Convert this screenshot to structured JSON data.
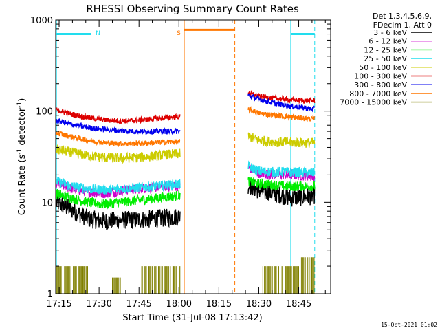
{
  "chart_data": {
    "type": "line",
    "title": "RHESSI Observing Summary Count Rates",
    "xlabel": "Start Time (31-Jul-08 17:13:42)",
    "ylabel_main": "Count Rate (s",
    "ylabel_sup1": "-1",
    "ylabel_mid": " detector",
    "ylabel_sup2": "-1",
    "ylabel_end": ")",
    "x_range_min": [
      1033.7,
      1137
    ],
    "ylim": [
      1,
      1000
    ],
    "yscale": "log",
    "x_ticks": [
      {
        "label": "17:15",
        "min": 1035
      },
      {
        "label": "17:30",
        "min": 1050
      },
      {
        "label": "17:45",
        "min": 1065
      },
      {
        "label": "18:00",
        "min": 1080
      },
      {
        "label": "18:15",
        "min": 1095
      },
      {
        "label": "18:30",
        "min": 1110
      },
      {
        "label": "18:45",
        "min": 1125
      }
    ],
    "y_ticks": [
      {
        "label": "1",
        "value": 1
      },
      {
        "label": "10",
        "value": 10
      },
      {
        "label": "100",
        "value": 100
      },
      {
        "label": "1000",
        "value": 1000
      }
    ],
    "legend_header": [
      "Det 1,3,4,5,6,9,",
      "FDecim 1, Att 0"
    ],
    "legend_position": "right",
    "series": [
      {
        "name": "3 - 6 keV",
        "color": "#000000",
        "segments": [
          {
            "t": [
              1034,
              1040,
              1046,
              1052,
              1058,
              1064,
              1070,
              1076,
              1080.5
            ],
            "v": [
              10,
              8.2,
              6.6,
              6.2,
              6.4,
              6.4,
              6.6,
              6.8,
              7.0
            ]
          },
          {
            "t": [
              1106,
              1110,
              1116,
              1122,
              1128,
              1131
            ],
            "v": [
              15.5,
              13.5,
              12.5,
              11.2,
              11.5,
              12
            ]
          }
        ]
      },
      {
        "name": "6 - 12 keV",
        "color": "#cc00cc",
        "segments": [
          {
            "t": [
              1034,
              1040,
              1046,
              1052,
              1058,
              1064,
              1070,
              1076,
              1080.5
            ],
            "v": [
              16,
              14,
              13,
              12.5,
              13.5,
              14,
              14.5,
              15,
              15
            ]
          },
          {
            "t": [
              1106,
              1110,
              1116,
              1122,
              1128,
              1131
            ],
            "v": [
              24,
              21,
              20,
              20,
              19.5,
              19.5
            ]
          }
        ]
      },
      {
        "name": "12 - 25 keV",
        "color": "#00ee00",
        "segments": [
          {
            "t": [
              1034,
              1040,
              1046,
              1052,
              1058,
              1064,
              1070,
              1076,
              1080.5
            ],
            "v": [
              12.5,
              11,
              10,
              9.6,
              10,
              10.5,
              11,
              11.5,
              12
            ]
          },
          {
            "t": [
              1106,
              1110,
              1116,
              1122,
              1128,
              1131
            ],
            "v": [
              17,
              16,
              15.5,
              15,
              15,
              15
            ]
          }
        ]
      },
      {
        "name": "25 - 50 keV",
        "color": "#22ddee",
        "segments": [
          {
            "t": [
              1034,
              1040,
              1046,
              1052,
              1058,
              1064,
              1070,
              1076,
              1080.5
            ],
            "v": [
              17,
              15,
              14,
              13.8,
              14,
              14.5,
              15,
              15.5,
              16
            ]
          },
          {
            "t": [
              1106,
              1110,
              1116,
              1122,
              1128,
              1131
            ],
            "v": [
              25,
              22,
              21.5,
              21.5,
              21,
              21
            ]
          }
        ]
      },
      {
        "name": "50 - 100 keV",
        "color": "#cccc00",
        "segments": [
          {
            "t": [
              1034,
              1040,
              1046,
              1052,
              1058,
              1064,
              1070,
              1076,
              1080.5
            ],
            "v": [
              38,
              35,
              32.5,
              31,
              30.5,
              31,
              32,
              33.5,
              34
            ]
          },
          {
            "t": [
              1106,
              1110,
              1116,
              1122,
              1128,
              1131
            ],
            "v": [
              53,
              48,
              46,
              45.5,
              45,
              45
            ]
          }
        ]
      },
      {
        "name": "100 - 300 keV",
        "color": "#dd0000",
        "segments": [
          {
            "t": [
              1034,
              1040,
              1046,
              1052,
              1058,
              1064,
              1070,
              1076,
              1080.5
            ],
            "v": [
              103,
              92,
              85,
              80,
              78,
              79,
              82,
              85,
              87
            ]
          },
          {
            "t": [
              1106,
              1110,
              1116,
              1122,
              1128,
              1131
            ],
            "v": [
              160,
              145,
              138,
              133,
              130,
              130
            ]
          }
        ]
      },
      {
        "name": "300 - 800 keV",
        "color": "#0000ee",
        "segments": [
          {
            "t": [
              1034,
              1040,
              1046,
              1052,
              1058,
              1064,
              1070,
              1076,
              1080.5
            ],
            "v": [
              79,
              71,
              66,
              63,
              61,
              60,
              60,
              60,
              60
            ]
          },
          {
            "t": [
              1106,
              1110,
              1116,
              1122,
              1128,
              1131
            ],
            "v": [
              150,
              135,
              122,
              113,
              108,
              105
            ]
          }
        ]
      },
      {
        "name": "800 - 7000 keV",
        "color": "#ff7700",
        "segments": [
          {
            "t": [
              1034,
              1040,
              1046,
              1052,
              1058,
              1064,
              1070,
              1076,
              1080.5
            ],
            "v": [
              58,
              52,
              48,
              45,
              44,
              44,
              45,
              46,
              46
            ]
          },
          {
            "t": [
              1106,
              1110,
              1116,
              1122,
              1128,
              1131
            ],
            "v": [
              105,
              95,
              90,
              86,
              83,
              82
            ]
          }
        ]
      },
      {
        "name": "7000 - 15000 keV",
        "color": "#808000",
        "segments": [
          {
            "t": [
              1034,
              1046
            ],
            "v": [
              2,
              2
            ]
          },
          {
            "t": [
              1055,
              1058
            ],
            "v": [
              1.5,
              1.5
            ]
          },
          {
            "t": [
              1066,
              1080.5
            ],
            "v": [
              2,
              2
            ]
          },
          {
            "t": [
              1110,
              1126
            ],
            "v": [
              2,
              2
            ]
          },
          {
            "t": [
              1126,
              1131
            ],
            "v": [
              2.5,
              2.5
            ]
          }
        ]
      }
    ],
    "annotations": [
      {
        "label": "N",
        "color": "#22ddee",
        "bar_t": [
          1034,
          1047
        ],
        "bar_v": 700,
        "lines_t": [
          1034,
          1047
        ],
        "line_dashed": [
          false,
          true
        ]
      },
      {
        "label": "S",
        "color": "#ff7700",
        "bar_t": [
          1082,
          1101
        ],
        "bar_v": 780,
        "lines_t": [
          1082,
          1101
        ],
        "line_dashed": [
          false,
          true
        ]
      },
      {
        "label": "",
        "color": "#22ddee",
        "bar_t": [
          1122,
          1131
        ],
        "bar_v": 700,
        "lines_t": [
          1122,
          1131
        ],
        "line_dashed": [
          false,
          true
        ]
      }
    ],
    "timestamp": "15-Oct-2021 01:02"
  }
}
